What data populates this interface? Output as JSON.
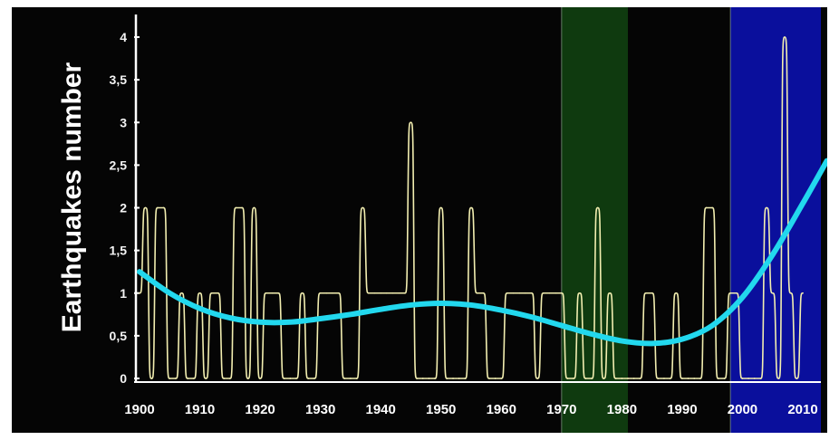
{
  "chart_data": {
    "type": "line",
    "title": "",
    "xlabel": "",
    "ylabel": "Earthquakes number",
    "xlim": [
      1900,
      2014
    ],
    "ylim": [
      0,
      4
    ],
    "x_ticks": [
      "1900",
      "1910",
      "1920",
      "1930",
      "1940",
      "1950",
      "1960",
      "1970",
      "1980",
      "1990",
      "2000",
      "2010"
    ],
    "y_ticks": [
      "0",
      "0,5",
      "1",
      "1,5",
      "2",
      "2,5",
      "3",
      "3,5",
      "4"
    ],
    "x_tick_values": [
      1900,
      1910,
      1920,
      1930,
      1940,
      1950,
      1960,
      1970,
      1980,
      1990,
      2000,
      2010
    ],
    "y_tick_values": [
      0,
      0.5,
      1,
      1.5,
      2,
      2.5,
      3,
      3.5,
      4
    ],
    "grid": false,
    "legend": "none",
    "shaded_regions": [
      {
        "from": 1970,
        "to": 1981,
        "color": "#0f3a0f"
      },
      {
        "from": 1998,
        "to": 2014,
        "color": "#0a0f9c"
      }
    ],
    "series": [
      {
        "kind": "annual_counts",
        "color": "#f2eeb0",
        "x": [
          1900,
          1901,
          1902,
          1903,
          1904,
          1905,
          1906,
          1907,
          1908,
          1909,
          1910,
          1911,
          1912,
          1913,
          1914,
          1915,
          1916,
          1917,
          1918,
          1919,
          1920,
          1921,
          1922,
          1923,
          1924,
          1925,
          1926,
          1927,
          1928,
          1929,
          1930,
          1931,
          1932,
          1933,
          1934,
          1935,
          1936,
          1937,
          1938,
          1939,
          1940,
          1941,
          1942,
          1943,
          1944,
          1945,
          1946,
          1947,
          1948,
          1949,
          1950,
          1951,
          1952,
          1953,
          1954,
          1955,
          1956,
          1957,
          1958,
          1959,
          1960,
          1961,
          1962,
          1963,
          1964,
          1965,
          1966,
          1967,
          1968,
          1969,
          1970,
          1971,
          1972,
          1973,
          1974,
          1975,
          1976,
          1977,
          1978,
          1979,
          1980,
          1981,
          1982,
          1983,
          1984,
          1985,
          1986,
          1987,
          1988,
          1989,
          1990,
          1991,
          1992,
          1993,
          1994,
          1995,
          1996,
          1997,
          1998,
          1999,
          2000,
          2001,
          2002,
          2003,
          2004,
          2005,
          2006,
          2007,
          2008,
          2009,
          2010
        ],
        "y": [
          1,
          2,
          0,
          2,
          2,
          0,
          0,
          1,
          0,
          0,
          1,
          0,
          1,
          1,
          0,
          0,
          2,
          2,
          0,
          2,
          0,
          1,
          1,
          1,
          0,
          0,
          0,
          1,
          0,
          0,
          1,
          1,
          1,
          1,
          0,
          0,
          0,
          2,
          1,
          1,
          1,
          1,
          1,
          1,
          1,
          3,
          0,
          0,
          0,
          0,
          2,
          0,
          0,
          0,
          0,
          2,
          1,
          1,
          0,
          0,
          0,
          1,
          1,
          1,
          1,
          1,
          0,
          1,
          1,
          1,
          1,
          0,
          0,
          1,
          0,
          0,
          2,
          0,
          1,
          0,
          0,
          0,
          0,
          0,
          1,
          1,
          0,
          0,
          0,
          1,
          0,
          0,
          0,
          0,
          2,
          2,
          0,
          0,
          1,
          1,
          0,
          0,
          0,
          0,
          2,
          1,
          0,
          4,
          1,
          0,
          1
        ]
      },
      {
        "kind": "trend",
        "color": "#22d8ee",
        "x": [
          1900,
          1905,
          1910,
          1915,
          1920,
          1925,
          1930,
          1935,
          1940,
          1945,
          1950,
          1955,
          1960,
          1965,
          1970,
          1975,
          1980,
          1985,
          1990,
          1995,
          2000,
          2005,
          2010,
          2014
        ],
        "y": [
          1.25,
          1.0,
          0.82,
          0.71,
          0.66,
          0.66,
          0.7,
          0.75,
          0.81,
          0.86,
          0.88,
          0.86,
          0.8,
          0.72,
          0.62,
          0.52,
          0.44,
          0.41,
          0.46,
          0.62,
          0.95,
          1.45,
          2.05,
          2.55
        ]
      }
    ]
  }
}
